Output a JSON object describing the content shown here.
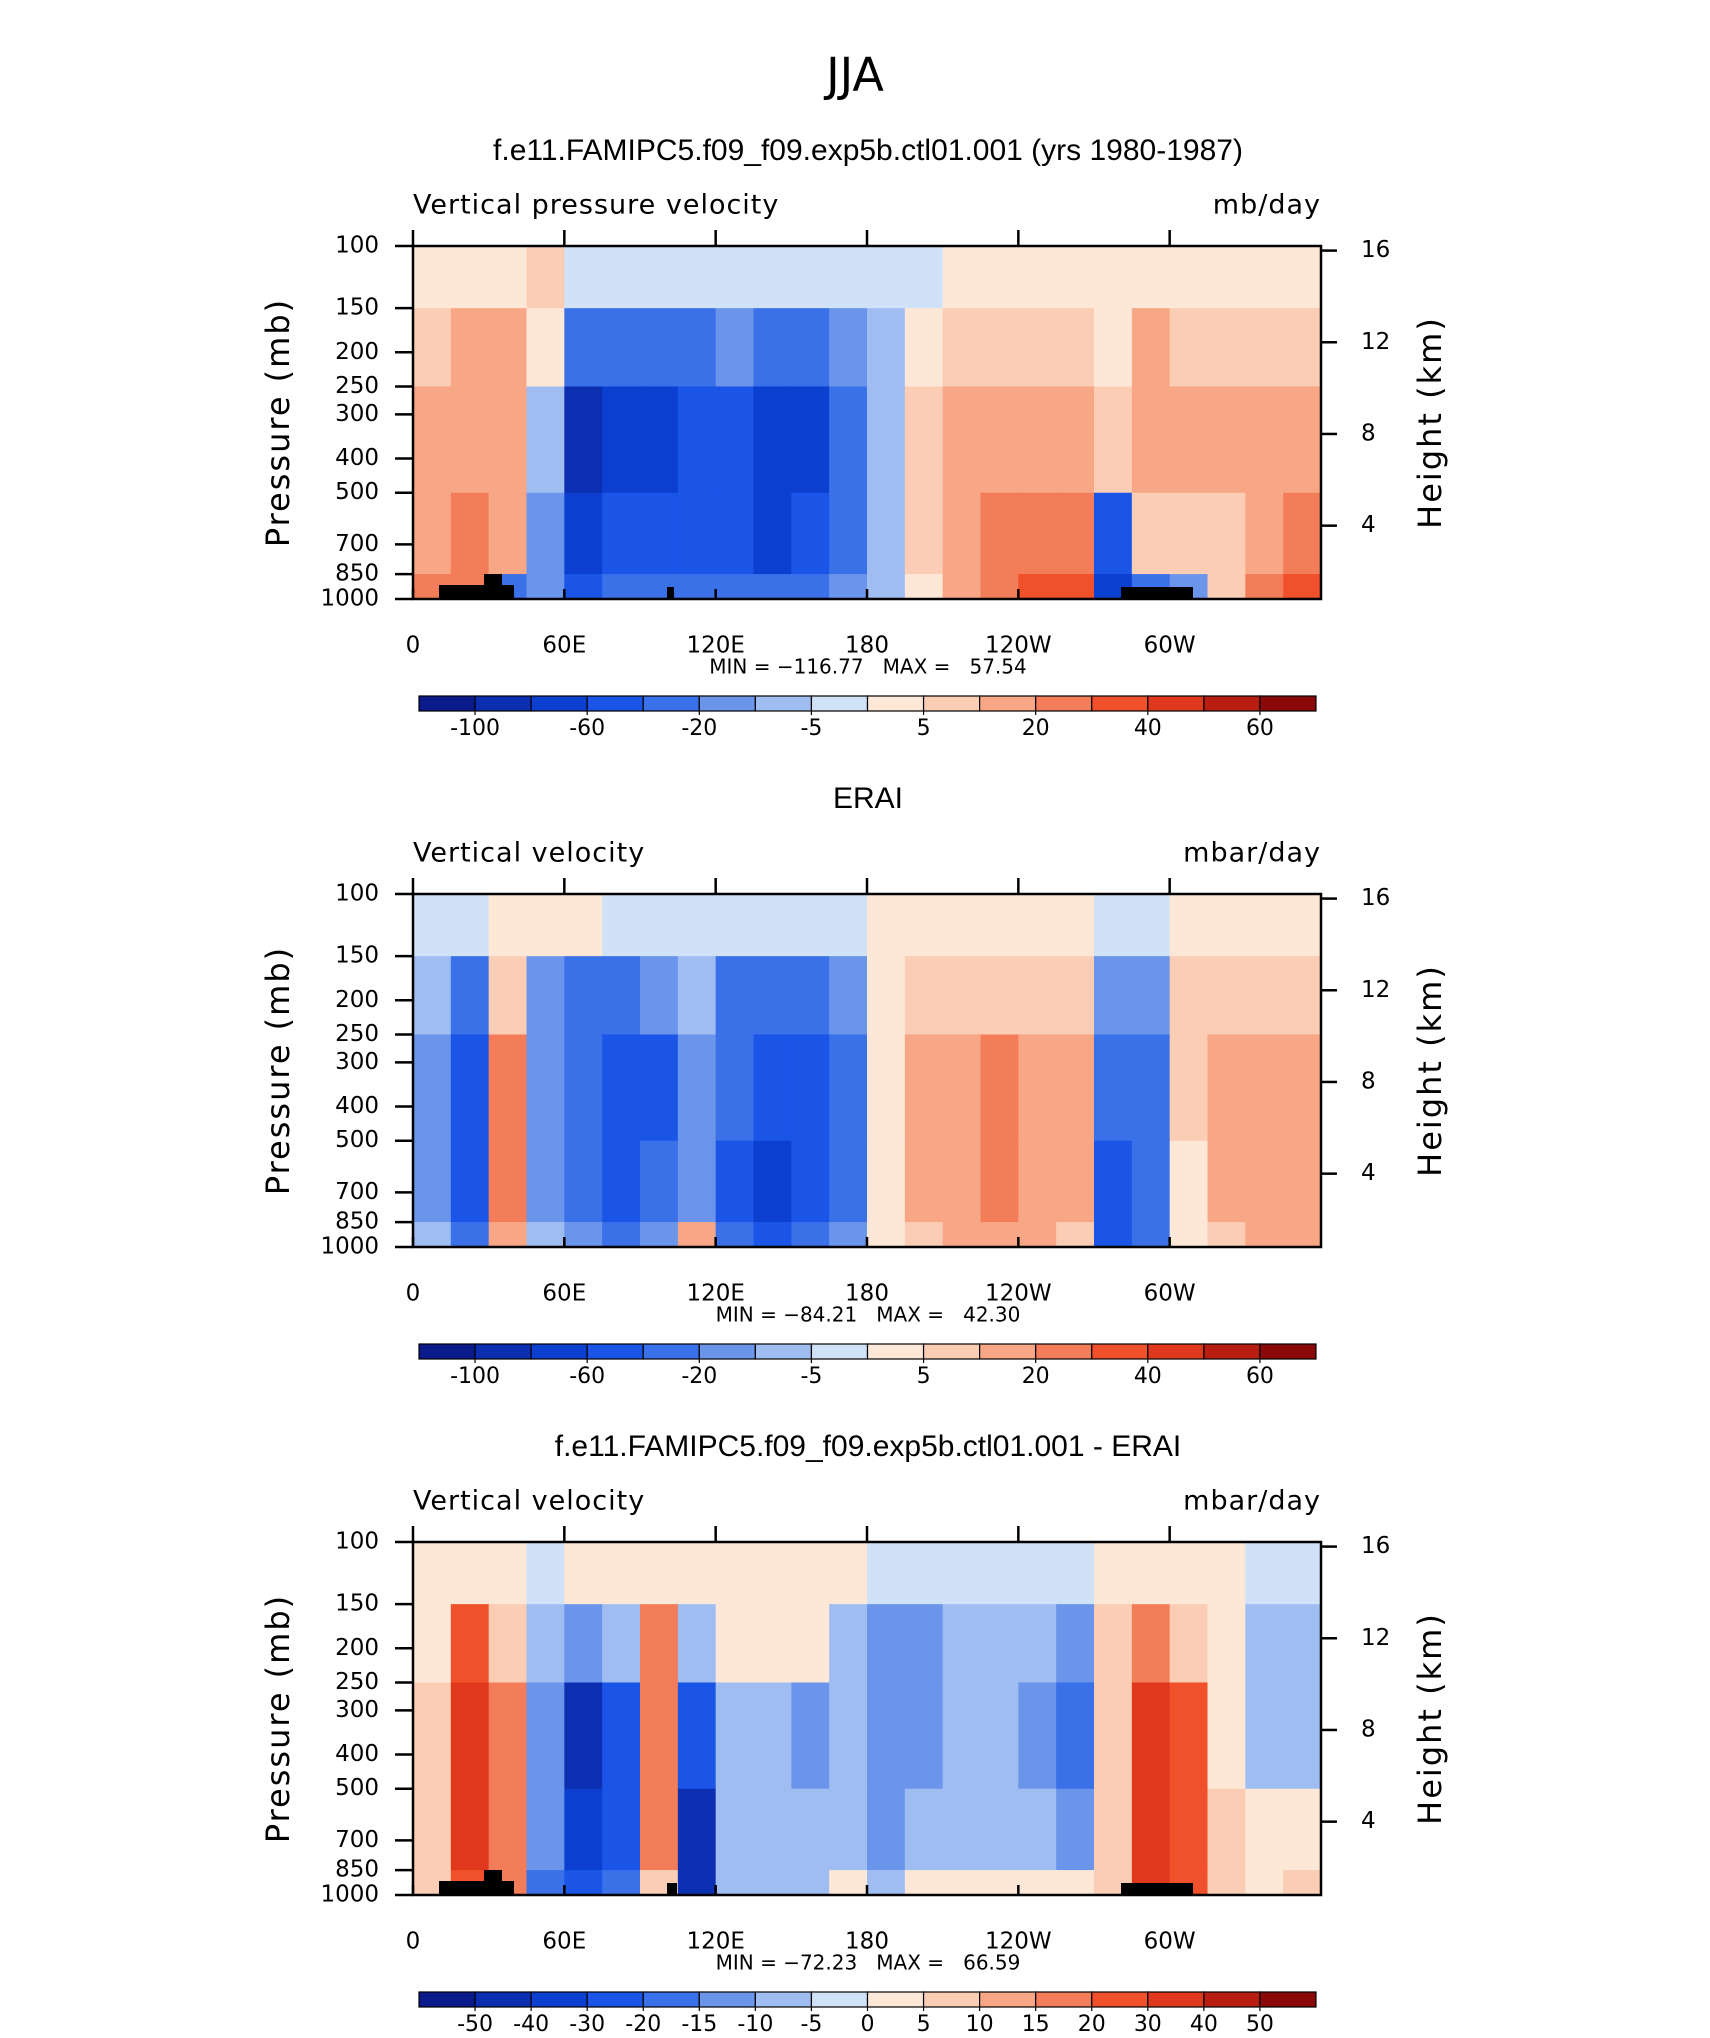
{
  "title": "JJA",
  "chart_data": [
    {
      "type": "contour",
      "title": "f.e11.FAMIPC5.f09_f09.exp5b.ctl01.001 (yrs 1980-1987)",
      "left_label": "Vertical pressure velocity",
      "units": "mb/day",
      "ylabel": "Pressure (mb)",
      "y2label": "Height (km)",
      "xlim": [
        0,
        360
      ],
      "xticks": [
        0,
        {
          "value": 60,
          "label": "60E"
        },
        {
          "value": 120,
          "label": "120E"
        },
        180,
        {
          "value": 240,
          "label": "120W"
        },
        {
          "value": 300,
          "label": "60W"
        }
      ],
      "ylim": [
        1000,
        100
      ],
      "log_y": true,
      "yticks": [
        100,
        150,
        200,
        250,
        300,
        400,
        500,
        700,
        850,
        1000
      ],
      "y2lim": [
        0.8,
        16.2
      ],
      "y2ticks": [
        4,
        8,
        12,
        16
      ],
      "stats": "MIN = −116.77   MAX =   57.54",
      "levels": [
        -100,
        -80,
        -60,
        -40,
        -20,
        -10,
        -5,
        0,
        5,
        10,
        20,
        30,
        40,
        50,
        60
      ],
      "colorbar_label_step": 2,
      "colors": [
        "#0a1a8a",
        "#0b2fb0",
        "#0a3fd0",
        "#1a55e8",
        "#3a70e8",
        "#6a95ea",
        "#a0bdf2",
        "#d0e2f8",
        "#fde8d8",
        "#fbcdb4",
        "#f7a785",
        "#f27d58",
        "#f0502a",
        "#e0381c",
        "#b81e10",
        "#8a0808"
      ],
      "field": {
        "lon_edges": [
          0,
          15,
          30,
          45,
          60,
          75,
          90,
          105,
          120,
          135,
          150,
          165,
          180,
          195,
          210,
          225,
          240,
          255,
          270,
          285,
          300,
          315,
          330,
          345,
          360
        ],
        "p_edges": [
          100,
          150,
          250,
          500,
          850,
          1000
        ],
        "values": [
          [
            5,
            5,
            5,
            10,
            -2,
            -2,
            -2,
            -2,
            -2,
            -2,
            -2,
            -2,
            -2,
            -2,
            5,
            5,
            5,
            5,
            5,
            5,
            5,
            5,
            5,
            5
          ],
          [
            10,
            20,
            20,
            5,
            -20,
            -20,
            -20,
            -20,
            -10,
            -20,
            -20,
            -10,
            -5,
            5,
            10,
            10,
            10,
            10,
            5,
            20,
            10,
            10,
            10,
            10
          ],
          [
            20,
            20,
            20,
            -5,
            -80,
            -60,
            -60,
            -40,
            -40,
            -60,
            -60,
            -20,
            -5,
            10,
            20,
            20,
            20,
            20,
            10,
            20,
            20,
            20,
            20,
            20
          ],
          [
            20,
            30,
            20,
            -10,
            -60,
            -40,
            -40,
            -40,
            -40,
            -60,
            -40,
            -20,
            -5,
            10,
            20,
            30,
            30,
            30,
            -40,
            10,
            10,
            10,
            20,
            30
          ],
          [
            30,
            30,
            -20,
            -10,
            -40,
            -20,
            -20,
            -20,
            -20,
            -20,
            -20,
            -10,
            -5,
            5,
            20,
            30,
            40,
            40,
            -60,
            -20,
            -10,
            10,
            30,
            40
          ]
        ]
      }
    },
    {
      "type": "contour",
      "title": "ERAI",
      "left_label": "Vertical velocity",
      "units": "mbar/day",
      "ylabel": "Pressure (mb)",
      "y2label": "Height (km)",
      "xlim": [
        0,
        360
      ],
      "xticks": [
        0,
        {
          "value": 60,
          "label": "60E"
        },
        {
          "value": 120,
          "label": "120E"
        },
        180,
        {
          "value": 240,
          "label": "120W"
        },
        {
          "value": 300,
          "label": "60W"
        }
      ],
      "ylim": [
        1000,
        100
      ],
      "log_y": true,
      "yticks": [
        100,
        150,
        200,
        250,
        300,
        400,
        500,
        700,
        850,
        1000
      ],
      "y2lim": [
        0.8,
        16.2
      ],
      "y2ticks": [
        4,
        8,
        12,
        16
      ],
      "stats": "MIN = −84.21   MAX =   42.30",
      "levels": [
        -100,
        -80,
        -60,
        -40,
        -20,
        -10,
        -5,
        0,
        5,
        10,
        20,
        30,
        40,
        50,
        60
      ],
      "colorbar_label_step": 2,
      "colors": [
        "#0a1a8a",
        "#0b2fb0",
        "#0a3fd0",
        "#1a55e8",
        "#3a70e8",
        "#6a95ea",
        "#a0bdf2",
        "#d0e2f8",
        "#fde8d8",
        "#fbcdb4",
        "#f7a785",
        "#f27d58",
        "#f0502a",
        "#e0381c",
        "#b81e10",
        "#8a0808"
      ],
      "field": {
        "lon_edges": [
          0,
          15,
          30,
          45,
          60,
          75,
          90,
          105,
          120,
          135,
          150,
          165,
          180,
          195,
          210,
          225,
          240,
          255,
          270,
          285,
          300,
          315,
          330,
          345,
          360
        ],
        "p_edges": [
          100,
          150,
          250,
          500,
          850,
          1000
        ],
        "values": [
          [
            -2,
            -2,
            5,
            5,
            5,
            -2,
            -2,
            -2,
            -2,
            -2,
            -2,
            -2,
            5,
            5,
            5,
            5,
            5,
            5,
            -2,
            -2,
            5,
            5,
            5,
            5
          ],
          [
            -5,
            -20,
            10,
            -10,
            -20,
            -20,
            -10,
            -5,
            -20,
            -20,
            -20,
            -10,
            5,
            10,
            10,
            10,
            10,
            10,
            -10,
            -10,
            10,
            10,
            10,
            10
          ],
          [
            -10,
            -40,
            30,
            -10,
            -20,
            -40,
            -40,
            -10,
            -20,
            -40,
            -40,
            -20,
            5,
            20,
            20,
            30,
            20,
            20,
            -20,
            -20,
            10,
            20,
            20,
            20
          ],
          [
            -10,
            -40,
            30,
            -10,
            -20,
            -40,
            -20,
            -10,
            -40,
            -60,
            -40,
            -20,
            5,
            20,
            20,
            30,
            20,
            20,
            -40,
            -20,
            5,
            20,
            20,
            20
          ],
          [
            -5,
            -20,
            20,
            -5,
            -10,
            -20,
            -10,
            20,
            -20,
            -40,
            -20,
            -10,
            5,
            10,
            20,
            20,
            20,
            10,
            -40,
            -20,
            5,
            10,
            20,
            20
          ]
        ]
      }
    },
    {
      "type": "contour",
      "title": "f.e11.FAMIPC5.f09_f09.exp5b.ctl01.001 - ERAI",
      "left_label": "Vertical velocity",
      "units": "mbar/day",
      "ylabel": "Pressure (mb)",
      "y2label": "Height (km)",
      "xlim": [
        0,
        360
      ],
      "xticks": [
        0,
        {
          "value": 60,
          "label": "60E"
        },
        {
          "value": 120,
          "label": "120E"
        },
        180,
        {
          "value": 240,
          "label": "120W"
        },
        {
          "value": 300,
          "label": "60W"
        }
      ],
      "ylim": [
        1000,
        100
      ],
      "log_y": true,
      "yticks": [
        100,
        150,
        200,
        250,
        300,
        400,
        500,
        700,
        850,
        1000
      ],
      "y2lim": [
        0.8,
        16.2
      ],
      "y2ticks": [
        4,
        8,
        12,
        16
      ],
      "stats": "MIN = −72.23   MAX =   66.59",
      "levels": [
        -50,
        -40,
        -30,
        -20,
        -15,
        -10,
        -5,
        0,
        5,
        10,
        15,
        20,
        30,
        40,
        50
      ],
      "colorbar_label_step": 1,
      "colors": [
        "#0a1a8a",
        "#0b2fb0",
        "#0a3fd0",
        "#1a55e8",
        "#3a70e8",
        "#6a95ea",
        "#a0bdf2",
        "#d0e2f8",
        "#fde8d8",
        "#fbcdb4",
        "#f7a785",
        "#f27d58",
        "#f0502a",
        "#e0381c",
        "#b81e10",
        "#8a0808"
      ],
      "field": {
        "lon_edges": [
          0,
          15,
          30,
          45,
          60,
          75,
          90,
          105,
          120,
          135,
          150,
          165,
          180,
          195,
          210,
          225,
          240,
          255,
          270,
          285,
          300,
          315,
          330,
          345,
          360
        ],
        "p_edges": [
          100,
          150,
          250,
          500,
          850,
          1000
        ],
        "values": [
          [
            5,
            5,
            5,
            -2,
            5,
            5,
            5,
            5,
            5,
            5,
            5,
            5,
            -2,
            -2,
            -2,
            -2,
            -2,
            -2,
            5,
            5,
            5,
            5,
            -2,
            -2
          ],
          [
            5,
            30,
            10,
            -5,
            -10,
            -5,
            20,
            -5,
            5,
            5,
            5,
            -5,
            -10,
            -10,
            -5,
            -5,
            -5,
            -10,
            10,
            20,
            10,
            5,
            -5,
            -5
          ],
          [
            10,
            40,
            20,
            -10,
            -40,
            -20,
            20,
            -20,
            -5,
            -5,
            -10,
            -5,
            -10,
            -10,
            -5,
            -5,
            -10,
            -15,
            10,
            40,
            30,
            5,
            -5,
            -5
          ],
          [
            10,
            40,
            20,
            -10,
            -30,
            -20,
            20,
            -40,
            -5,
            -5,
            -5,
            -5,
            -10,
            -5,
            -5,
            -5,
            -5,
            -10,
            10,
            40,
            30,
            10,
            5,
            5
          ],
          [
            10,
            30,
            20,
            -15,
            -20,
            -15,
            10,
            -40,
            -5,
            -5,
            -5,
            5,
            -5,
            5,
            5,
            5,
            5,
            5,
            10,
            40,
            30,
            10,
            5,
            10
          ]
        ]
      }
    }
  ]
}
